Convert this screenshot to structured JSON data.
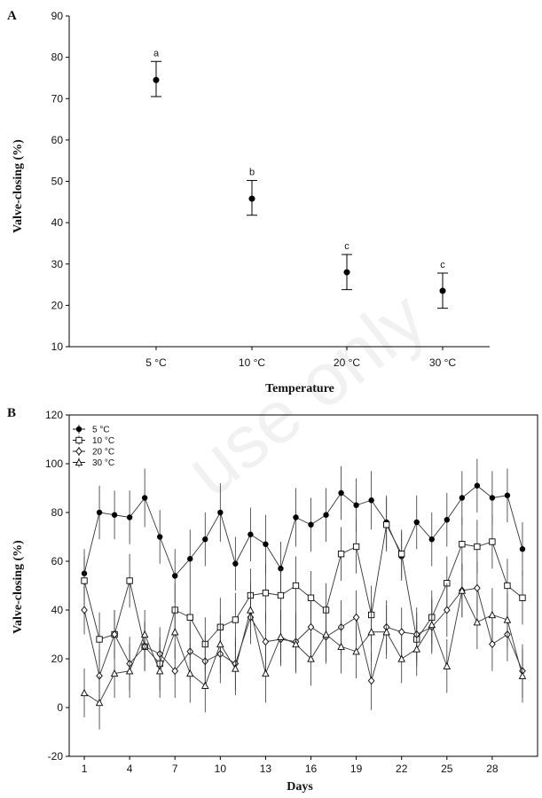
{
  "watermark": "use only",
  "chart_data": [
    {
      "type": "scatter",
      "panel_label": "A",
      "xlabel": "Temperature",
      "ylabel": "Valve-closing (%)",
      "ylim": [
        10,
        90
      ],
      "yticks": [
        10,
        20,
        30,
        40,
        50,
        60,
        70,
        80,
        90
      ],
      "categories": [
        "5 °C",
        "10 °C",
        "20 °C",
        "30 °C"
      ],
      "values": [
        74.5,
        45.8,
        28.0,
        23.5
      ],
      "err_low": [
        70.5,
        41.8,
        23.8,
        19.3
      ],
      "err_high": [
        79.0,
        50.2,
        32.3,
        27.8
      ],
      "annotations": [
        "a",
        "b",
        "c",
        "c"
      ],
      "grid": false
    },
    {
      "type": "line",
      "panel_label": "B",
      "xlabel": "Days",
      "ylabel": "Valve-closing (%)",
      "ylim": [
        -20,
        120
      ],
      "yticks": [
        -20,
        0,
        20,
        40,
        60,
        80,
        100,
        120
      ],
      "xlim": [
        0,
        31
      ],
      "xticks": [
        1,
        4,
        7,
        10,
        13,
        16,
        19,
        22,
        25,
        28
      ],
      "x": [
        1,
        2,
        3,
        4,
        5,
        6,
        7,
        8,
        9,
        10,
        11,
        12,
        13,
        14,
        15,
        16,
        17,
        18,
        19,
        20,
        21,
        22,
        23,
        24,
        25,
        26,
        27,
        28,
        29,
        30
      ],
      "legend_position": "top-left",
      "grid": false,
      "series": [
        {
          "name": "5 °C",
          "marker": "filled-circle",
          "values": [
            55,
            80,
            79,
            78,
            86,
            70,
            54,
            61,
            69,
            80,
            59,
            71,
            67,
            57,
            78,
            75,
            79,
            88,
            83,
            85,
            76,
            62,
            76,
            69,
            77,
            86,
            91,
            86,
            87,
            65
          ],
          "errors": [
            10,
            11,
            10,
            11,
            12,
            11,
            11,
            12,
            11,
            12,
            11,
            11,
            12,
            11,
            12,
            11,
            11,
            11,
            11,
            12,
            11,
            10,
            11,
            11,
            11,
            11,
            11,
            11,
            11,
            11
          ]
        },
        {
          "name": "10 °C",
          "marker": "open-square",
          "values": [
            52,
            28,
            30,
            52,
            25,
            18,
            40,
            37,
            26,
            33,
            36,
            46,
            47,
            46,
            50,
            45,
            40,
            63,
            66,
            38,
            75,
            63,
            28,
            37,
            51,
            67,
            66,
            68,
            50,
            45
          ],
          "errors": [
            10,
            11,
            10,
            11,
            10,
            11,
            11,
            12,
            11,
            12,
            11,
            11,
            12,
            11,
            12,
            11,
            11,
            11,
            11,
            12,
            11,
            10,
            11,
            11,
            11,
            11,
            11,
            11,
            11,
            11
          ]
        },
        {
          "name": "20 °C",
          "marker": "open-diamond",
          "values": [
            40,
            13,
            30,
            18,
            25,
            22,
            15,
            23,
            19,
            22,
            18,
            37,
            27,
            28,
            27,
            33,
            29,
            33,
            37,
            11,
            33,
            31,
            30,
            33,
            40,
            48,
            49,
            26,
            30,
            15
          ],
          "errors": [
            10,
            11,
            10,
            11,
            10,
            11,
            11,
            12,
            11,
            12,
            11,
            11,
            12,
            11,
            12,
            11,
            11,
            11,
            11,
            12,
            11,
            10,
            11,
            11,
            11,
            11,
            11,
            11,
            11,
            11
          ]
        },
        {
          "name": "30 °C",
          "marker": "open-triangle",
          "values": [
            6,
            2,
            14,
            15,
            30,
            15,
            31,
            14,
            9,
            26,
            16,
            40,
            14,
            29,
            26,
            20,
            30,
            25,
            23,
            31,
            31,
            20,
            24,
            34,
            17,
            48,
            35,
            38,
            36,
            13
          ],
          "errors": [
            10,
            11,
            10,
            11,
            10,
            11,
            11,
            12,
            11,
            12,
            11,
            11,
            12,
            11,
            12,
            11,
            11,
            11,
            11,
            12,
            11,
            10,
            11,
            11,
            11,
            11,
            11,
            11,
            11,
            11
          ]
        }
      ]
    }
  ]
}
